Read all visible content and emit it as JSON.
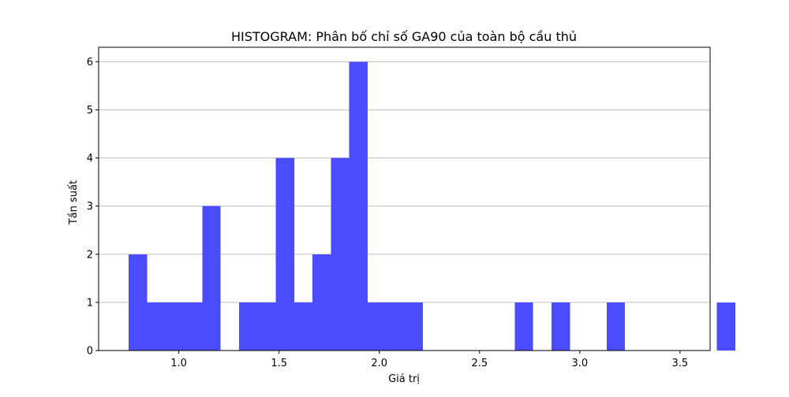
{
  "chart_data": {
    "type": "bar",
    "title": "HISTOGRAM: Phân bố chỉ số GA90 của toàn bộ cầu thủ",
    "xlabel": "Giá trị",
    "ylabel": "Tần suất",
    "xlim": [
      0.6,
      3.65
    ],
    "ylim": [
      0,
      6.3
    ],
    "x_ticks": [
      1.0,
      1.5,
      2.0,
      2.5,
      3.0,
      3.5
    ],
    "x_tick_labels": [
      "1.0",
      "1.5",
      "2.0",
      "2.5",
      "3.0",
      "3.5"
    ],
    "y_ticks": [
      0,
      1,
      2,
      3,
      4,
      5,
      6
    ],
    "y_tick_labels": [
      "0",
      "1",
      "2",
      "3",
      "4",
      "5",
      "6"
    ],
    "grid": "y",
    "bar_color": "#4b4bff",
    "bin_edges_start": 0.75,
    "bin_width": 0.0917,
    "counts": [
      2,
      1,
      1,
      1,
      3,
      0,
      1,
      1,
      4,
      1,
      2,
      4,
      6,
      1,
      1,
      1,
      0,
      0,
      0,
      0,
      0,
      1,
      0,
      1,
      0,
      0,
      1,
      0,
      0,
      0,
      0,
      0,
      1
    ]
  }
}
